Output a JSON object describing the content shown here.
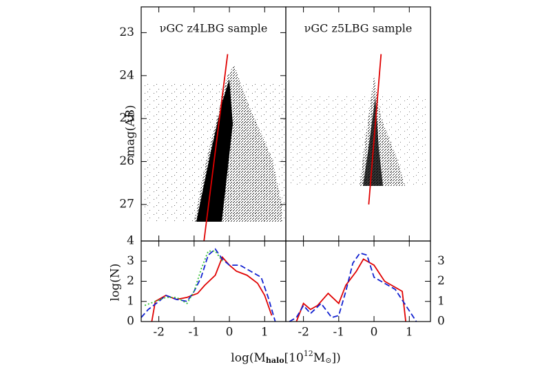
{
  "chart_data": [
    {
      "type": "scatter",
      "title": "νGC z4LBG sample",
      "y_label": "mag(AB)",
      "xlim": [
        -2.5,
        1.6
      ],
      "ylim": [
        27.85,
        22.4
      ],
      "yticks": [
        23,
        24,
        25,
        26,
        27
      ],
      "series": [
        {
          "color": "#e00000",
          "x": [
            -0.05,
            -0.72
          ],
          "values": [
            23.5,
            27.85
          ]
        }
      ]
    },
    {
      "type": "scatter",
      "title": "νGC z5LBG sample",
      "xlim": [
        -2.5,
        1.6
      ],
      "ylim": [
        27.85,
        22.4
      ],
      "series": [
        {
          "color": "#e00000",
          "x": [
            0.2,
            -0.15
          ],
          "values": [
            23.5,
            27.0
          ]
        }
      ]
    },
    {
      "type": "line",
      "y_label": "log(N)",
      "x_label": [
        "log(M",
        "halo",
        "[10",
        "12",
        "M",
        "⊙",
        "])"
      ],
      "xlim": [
        -2.5,
        1.6
      ],
      "ylim": [
        0,
        4
      ],
      "xticks": [
        -2,
        -1,
        0,
        1
      ],
      "yticks": [
        0,
        1,
        2,
        3,
        4
      ],
      "series": [
        {
          "color": "#e00000",
          "dash": "solid",
          "x": [
            -2.2,
            -2.1,
            -1.8,
            -1.5,
            -1.2,
            -0.9,
            -0.7,
            -0.4,
            -0.2,
            0,
            0.2,
            0.5,
            0.8,
            1.0,
            1.2
          ],
          "values": [
            0,
            1,
            1.3,
            1.1,
            1.2,
            1.4,
            1.8,
            2.3,
            3.2,
            2.8,
            2.5,
            2.3,
            1.9,
            1.3,
            0.3
          ]
        },
        {
          "color": "#1020d0",
          "dash": "dashed",
          "x": [
            -2.5,
            -2.3,
            -2,
            -1.8,
            -1.5,
            -1.2,
            -1,
            -0.8,
            -0.6,
            -0.4,
            -0.2,
            0,
            0.3,
            0.6,
            0.9,
            1.1,
            1.3
          ],
          "values": [
            0.2,
            0.6,
            1,
            1.3,
            1.1,
            1,
            1.5,
            2.2,
            3.3,
            3.6,
            3.1,
            2.8,
            2.8,
            2.5,
            2.2,
            1.2,
            0
          ]
        },
        {
          "color": "#30c030",
          "dash": "dotted",
          "x": [
            -2.4,
            -2.1,
            -1.8,
            -1.5,
            -1.2,
            -1,
            -0.8,
            -0.6,
            -0.4,
            -0.2
          ],
          "values": [
            0.8,
            1,
            1.2,
            1.2,
            0.9,
            1.5,
            2.6,
            3.5,
            3.5,
            3.0
          ]
        }
      ]
    },
    {
      "type": "line",
      "xlim": [
        -2.5,
        1.6
      ],
      "ylim": [
        0,
        4
      ],
      "xticks": [
        -2,
        -1,
        0,
        1
      ],
      "y2ticks": [
        0,
        1,
        2,
        3
      ],
      "series": [
        {
          "color": "#e00000",
          "dash": "solid",
          "x": [
            -2.2,
            -2,
            -1.8,
            -1.6,
            -1.3,
            -1,
            -0.8,
            -0.5,
            -0.3,
            0,
            0.3,
            0.6,
            0.8,
            0.9
          ],
          "values": [
            0,
            0.9,
            0.6,
            0.8,
            1.4,
            0.9,
            1.8,
            2.5,
            3.1,
            2.8,
            2.0,
            1.7,
            1.5,
            0
          ]
        },
        {
          "color": "#1020d0",
          "dash": "dashed",
          "x": [
            -2.4,
            -2.2,
            -2,
            -1.8,
            -1.5,
            -1.2,
            -1,
            -0.8,
            -0.6,
            -0.4,
            -0.2,
            0,
            0.3,
            0.6,
            0.9,
            1.2
          ],
          "values": [
            0,
            0.2,
            0.8,
            0.4,
            0.9,
            0.2,
            0.3,
            1.5,
            2.9,
            3.4,
            3.3,
            2.2,
            1.9,
            1.6,
            0.8,
            0
          ]
        }
      ]
    }
  ]
}
